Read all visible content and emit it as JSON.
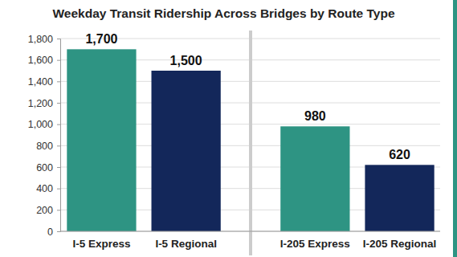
{
  "chart_data": {
    "type": "bar",
    "title": "Weekday Transit Ridership Across Bridges by Route Type",
    "categories": [
      "I-5 Express",
      "I-5 Regional",
      "I-205 Express",
      "I-205 Regional"
    ],
    "values": [
      1700,
      1500,
      980,
      620
    ],
    "value_labels": [
      "1,700",
      "1,500",
      "980",
      "620"
    ],
    "colors": [
      "#2e9483",
      "#13275a",
      "#2e9483",
      "#13275a"
    ],
    "ylim": [
      0,
      1800
    ],
    "yticks": [
      0,
      200,
      400,
      600,
      800,
      {
        "value": 1000,
        "label": "1,000"
      },
      {
        "value": 1200,
        "label": "1,200"
      },
      {
        "value": 1400,
        "label": "1,400"
      },
      {
        "value": 1600,
        "label": "1,600"
      },
      {
        "value": 1800,
        "label": "1,800"
      }
    ],
    "grid": true,
    "data_labels": true
  }
}
